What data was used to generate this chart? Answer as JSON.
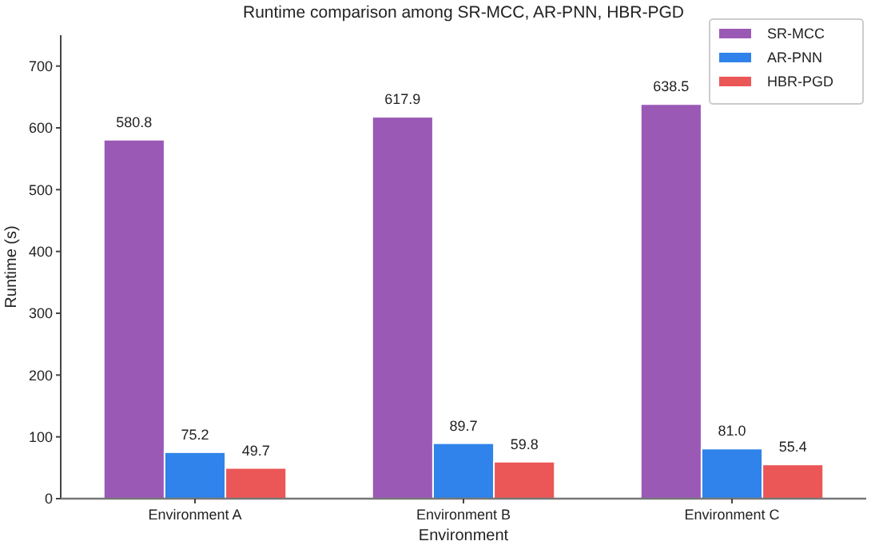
{
  "chart_data": {
    "type": "bar",
    "title": "Runtime comparison among SR-MCC, AR-PNN, HBR-PGD",
    "xlabel": "Environment",
    "ylabel": "Runtime (s)",
    "categories": [
      "Environment A",
      "Environment B",
      "Environment C"
    ],
    "series": [
      {
        "name": "SR-MCC",
        "color": "#9b59b6",
        "values": [
          580.8,
          617.9,
          638.5
        ],
        "value_labels": [
          "580.8",
          "617.9",
          "638.5"
        ]
      },
      {
        "name": "AR-PNN",
        "color": "#2f83ea",
        "values": [
          75.2,
          89.7,
          81.0
        ],
        "value_labels": [
          "75.2",
          "89.7",
          "81.0"
        ]
      },
      {
        "name": "HBR-PGD",
        "color": "#eb5757",
        "values": [
          49.7,
          59.8,
          55.4
        ],
        "value_labels": [
          "49.7",
          "59.8",
          "55.4"
        ]
      }
    ],
    "ylim": [
      0,
      750
    ],
    "yticks": [
      0,
      100,
      200,
      300,
      400,
      500,
      600,
      700
    ],
    "legend": "top right",
    "grid": false
  }
}
